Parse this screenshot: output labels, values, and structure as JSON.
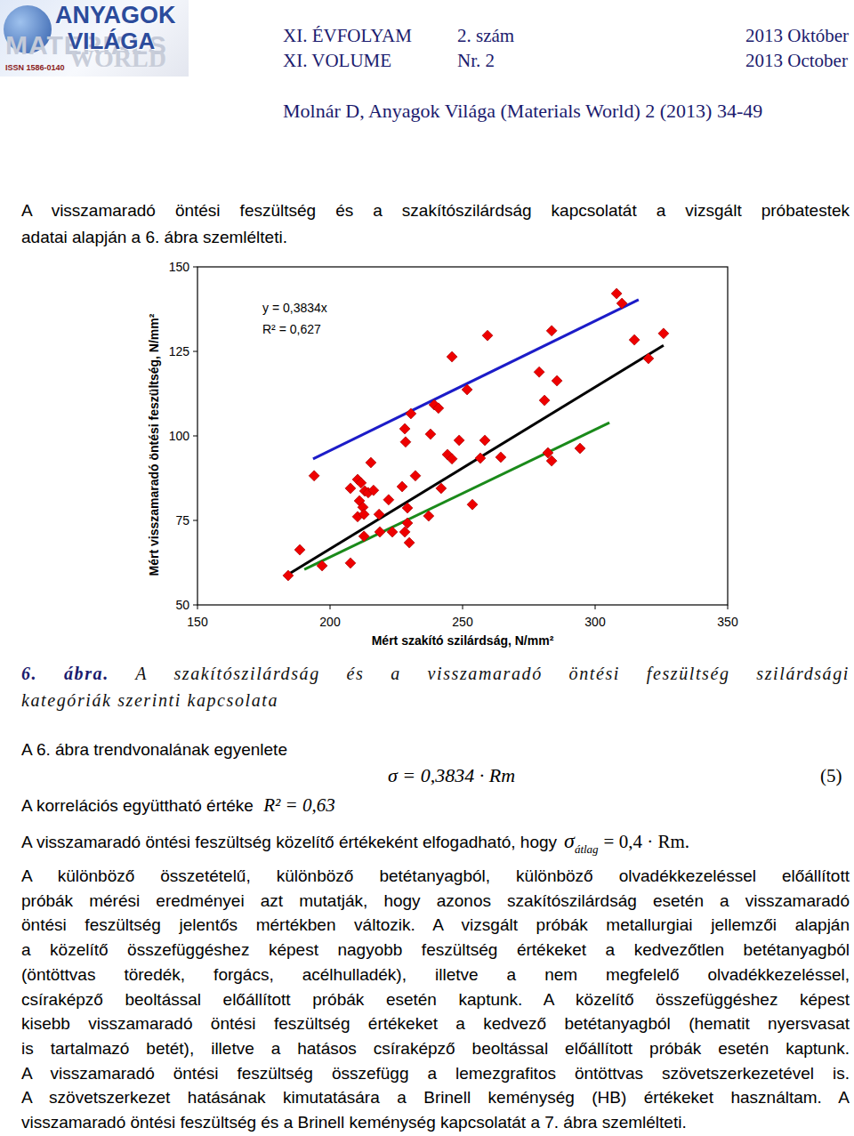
{
  "header": {
    "logo_top": "ANYAGOK",
    "logo_middle": "VILÁGA",
    "logo_back_top": "MATERIALS",
    "logo_back_bottom": "WORLD",
    "issn": "ISSN 1586-0140",
    "volume_hu": "XI. ÉVFOLYAM",
    "issue_hu": "2. szám",
    "date_hu": "2013 Október",
    "volume_en": "XI. VOLUME",
    "issue_en": "Nr. 2",
    "date_en": "2013 October",
    "citation": "Molnár D, Anyagok Világa (Materials World) 2 (2013) 34-49"
  },
  "intro_lines": [
    "A visszamaradó öntési feszültség és a szakítószilárdság kapcsolatát a vizsgált próbatestek",
    "adatai alapján a 6. ábra szemlélteti."
  ],
  "chart_data": {
    "type": "scatter",
    "x_label": "Mért szakító szilárdság, N/mm²",
    "y_label": "Mért visszamaradó öntési feszültség, N/mm²",
    "annotations": [
      "y = 0,3834x",
      "R² = 0,627"
    ],
    "xlim": [
      150,
      350
    ],
    "ylim": [
      50,
      150
    ],
    "xticks": [
      150,
      200,
      250,
      300,
      350
    ],
    "yticks": [
      50,
      75,
      100,
      125,
      150
    ],
    "grid": false,
    "series": [
      {
        "type": "scatter",
        "marker": "diamond",
        "color": "#ee0000",
        "x": [
          184.2,
          188.6,
          194.0,
          197.0,
          207.7,
          207.7,
          210.4,
          211.7,
          211.1,
          212.4,
          210.4,
          212.8,
          213.1,
          214.4,
          216.4,
          215.4,
          212.8,
          218.5,
          218.8,
          222.1,
          223.5,
          227.2,
          228.2,
          228.5,
          229.2,
          228.2,
          229.9,
          229.2,
          230.5,
          232.2,
          237.9,
          237.2,
          239.3,
          240.9,
          241.9,
          244.3,
          246.0,
          246.0,
          248.7,
          251.7,
          253.7,
          256.7,
          258.4,
          259.4,
          264.4,
          278.9,
          280.9,
          282.2,
          283.6,
          283.6,
          285.6,
          294.3,
          308.1,
          310.1,
          314.8,
          320.1,
          325.8
        ],
        "values": [
          58.7,
          66.3,
          88.2,
          61.6,
          62.4,
          84.5,
          87.1,
          86.1,
          80.8,
          78.9,
          76.1,
          76.8,
          83.7,
          83.2,
          83.9,
          92.1,
          70.3,
          76.8,
          71.6,
          81.1,
          71.6,
          85.0,
          102.1,
          98.2,
          78.7,
          71.6,
          68.4,
          74.2,
          106.6,
          88.2,
          100.5,
          76.3,
          109.2,
          108.2,
          84.5,
          94.5,
          93.2,
          123.4,
          98.7,
          113.7,
          79.7,
          93.4,
          98.7,
          129.7,
          93.7,
          118.9,
          110.5,
          95.0,
          92.6,
          131.1,
          116.3,
          96.3,
          142.1,
          139.2,
          128.4,
          122.9,
          130.3
        ]
      },
      {
        "type": "line",
        "line_style": "solid",
        "color": "#1c1cc8",
        "x": [
          193.6,
          316.4
        ],
        "values": [
          93.2,
          140.3
        ]
      },
      {
        "type": "line",
        "line_style": "solid",
        "color": "#000000",
        "x": [
          184.6,
          325.8
        ],
        "values": [
          59.2,
          126.8
        ]
      },
      {
        "type": "line",
        "line_style": "solid",
        "color": "#1a8a1a",
        "x": [
          190.3,
          305.4
        ],
        "values": [
          60.5,
          103.9
        ]
      }
    ]
  },
  "caption": {
    "label": "6. ábra.",
    "lines": [
      "A szakítószilárdság és a visszamaradó öntési feszültség szilárdsági",
      "kategóriák szerinti kapcsolata"
    ]
  },
  "trend_line_text": "A 6. ábra trendvonalának egyenlete",
  "equation": {
    "text": "σ = 0,3834 · Rm",
    "number": "(5)"
  },
  "correlation": {
    "text": "A korrelációs együttható értéke",
    "formula": "R² = 0,63"
  },
  "approximation": {
    "text": "A visszamaradó öntési feszültség közelítő értékeként elfogadható, hogy",
    "symbol": "σ",
    "subscript": "átlag",
    "formula": "= 0,4 · Rm."
  },
  "paragraph_lines": [
    "A különböző összetételű, különböző betétanyagból, különböző olvadékkezeléssel előállított",
    "próbák mérési eredményei azt mutatják, hogy azonos szakítószilárdság esetén a visszamaradó",
    "öntési feszültség jelentős mértékben változik. A vizsgált próbák metallurgiai jellemzői alapján",
    "a közelítő összefüggéshez képest nagyobb feszültség értékeket a kedvezőtlen betétanyagból",
    "(öntöttvas töredék, forgács, acélhulladék), illetve a nem megfelelő olvadékkezeléssel,",
    "csíraképző beoltással előállított próbák esetén kaptunk. A közelítő összefüggéshez képest",
    "kisebb visszamaradó öntési feszültség értékeket a kedvező betétanyagból (hematit nyersvasat",
    "is tartalmazó betét), illetve a hatásos csíraképző beoltással előállított próbák esetén kaptunk.",
    "A visszamaradó öntési feszültség összefügg a lemezgrafitos öntöttvas szövetszerkezetével is.",
    "A szövetszerkezet hatásának kimutatására a Brinell keménység (HB) értékeket használtam. A",
    "visszamaradó öntési feszültség és a Brinell keménység kapcsolatát a 7. ábra szemlélteti."
  ]
}
